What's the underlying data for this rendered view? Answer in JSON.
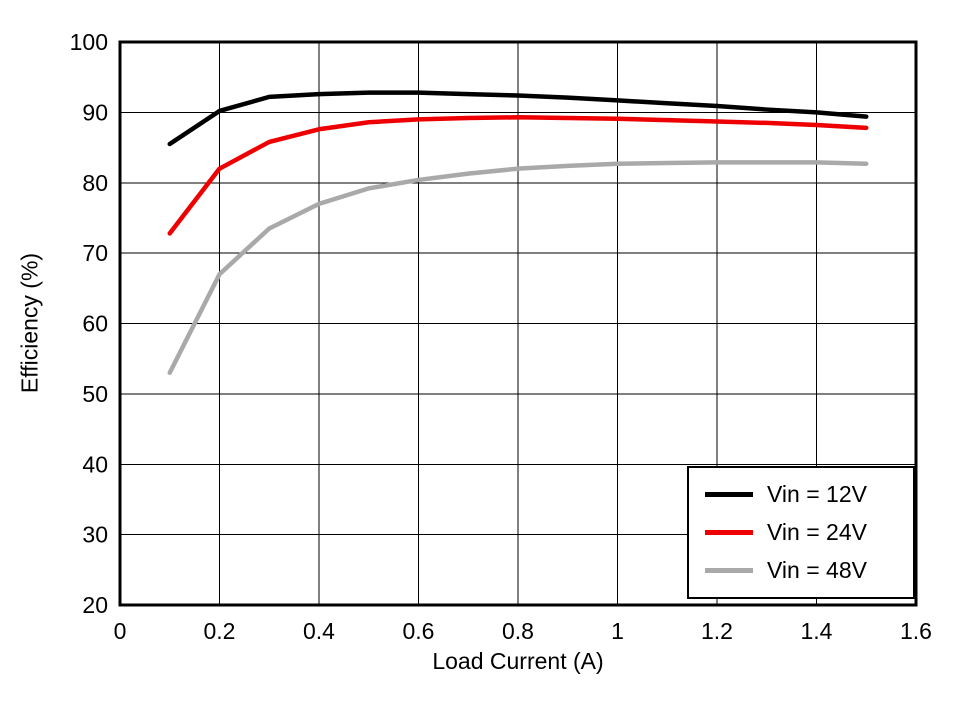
{
  "chart_data": {
    "type": "line",
    "title": "",
    "xlabel": "Load Current (A)",
    "ylabel": "Efficiency (%)",
    "xlim": [
      0,
      1.6
    ],
    "ylim": [
      20,
      100
    ],
    "xticks": [
      0,
      0.2,
      0.4,
      0.6,
      0.8,
      1,
      1.2,
      1.4,
      1.6
    ],
    "yticks": [
      20,
      30,
      40,
      50,
      60,
      70,
      80,
      90,
      100
    ],
    "grid": true,
    "grid_color": "#000000",
    "legend_position": "lower right",
    "x": [
      0.1,
      0.2,
      0.3,
      0.4,
      0.5,
      0.6,
      0.7,
      0.8,
      0.9,
      1.0,
      1.1,
      1.2,
      1.3,
      1.4,
      1.5
    ],
    "series": [
      {
        "name": "Vin = 12V",
        "color": "#000000",
        "values": [
          85.5,
          90.2,
          92.2,
          92.6,
          92.8,
          92.8,
          92.6,
          92.4,
          92.1,
          91.7,
          91.3,
          90.9,
          90.4,
          90.0,
          89.4
        ]
      },
      {
        "name": "Vin = 24V",
        "color": "#ee0000",
        "values": [
          72.8,
          82.0,
          85.8,
          87.6,
          88.6,
          89.0,
          89.2,
          89.3,
          89.2,
          89.1,
          88.9,
          88.7,
          88.5,
          88.2,
          87.8
        ]
      },
      {
        "name": "Vin = 48V",
        "color": "#a9a9a9",
        "values": [
          53.0,
          67.0,
          73.5,
          77.0,
          79.2,
          80.4,
          81.3,
          82.0,
          82.4,
          82.7,
          82.8,
          82.9,
          82.9,
          82.9,
          82.7
        ]
      }
    ]
  }
}
